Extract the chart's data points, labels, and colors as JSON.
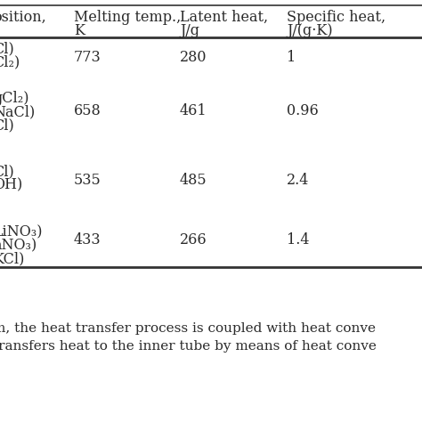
{
  "col_headers_line1": [
    "osition,",
    "Melting temp.,",
    "Latent heat,",
    "Specific heat,"
  ],
  "col_headers_line2": [
    "",
    "K",
    "J/g",
    "J/(g·K)"
  ],
  "rows": [
    {
      "composition_lines": [
        "Cl)",
        "Cl₂)"
      ],
      "melting_temp": "773",
      "latent_heat": "280",
      "specific_heat": "1"
    },
    {
      "composition_lines": [
        "gCl₂)",
        "NaCl)",
        "Cl)"
      ],
      "melting_temp": "658",
      "latent_heat": "461",
      "specific_heat": "0.96"
    },
    {
      "composition_lines": [
        "Cl)",
        "OH)"
      ],
      "melting_temp": "535",
      "latent_heat": "485",
      "specific_heat": "2.4"
    },
    {
      "composition_lines": [
        "LiNO₃)",
        "aNO₃)",
        "KCl)"
      ],
      "melting_temp": "433",
      "latent_heat": "266",
      "specific_heat": "1.4"
    }
  ],
  "footer_lines": [
    "m, the heat transfer process is coupled with heat conve",
    "transfers heat to the inner tube by means of heat conve"
  ],
  "bg_color": "#ffffff",
  "text_color": "#2a2a2a",
  "line_color": "#333333",
  "font_size": 11.5,
  "footer_font_size": 11.0
}
